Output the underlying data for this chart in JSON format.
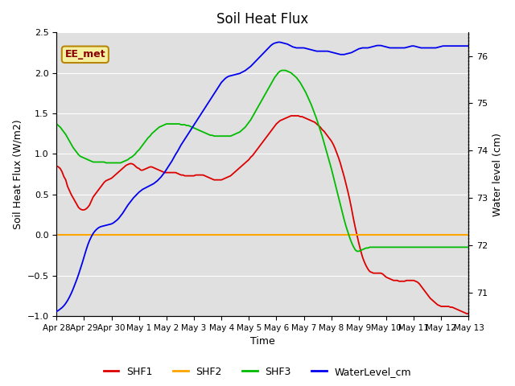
{
  "title": "Soil Heat Flux",
  "ylabel_left": "Soil Heat Flux (W/m2)",
  "ylabel_right": "Water level (cm)",
  "xlabel": "Time",
  "ylim_left": [
    -1.0,
    2.5
  ],
  "ylim_right": [
    70.5,
    76.5
  ],
  "background_color": "#ffffff",
  "plot_bg_color": "#e0e0e0",
  "grid_color": "#ffffff",
  "annotation_text": "EE_met",
  "annotation_bg": "#f5f0a0",
  "annotation_border": "#b8860b",
  "x_tick_labels": [
    "Apr 28",
    "Apr 29",
    "Apr 30",
    "May 1",
    "May 2",
    "May 3",
    "May 4",
    "May 5",
    "May 6",
    "May 7",
    "May 8",
    "May 9",
    "May 10",
    "May 11",
    "May 12",
    "May 13"
  ],
  "shf1_color": "#dd0000",
  "shf2_color": "#ffa500",
  "shf3_color": "#00bb00",
  "wl_color": "#0000ee",
  "shf1_x": [
    0,
    0.1,
    0.2,
    0.3,
    0.4,
    0.5,
    0.6,
    0.7,
    0.8,
    0.9,
    1.0,
    1.1,
    1.2,
    1.3,
    1.4,
    1.5,
    1.6,
    1.7,
    1.8,
    1.9,
    2.0,
    2.1,
    2.2,
    2.3,
    2.4,
    2.5,
    2.6,
    2.7,
    2.8,
    2.9,
    3.0,
    3.1,
    3.2,
    3.3,
    3.4,
    3.5,
    3.6,
    3.7,
    3.8,
    3.9,
    4.0,
    4.1,
    4.2,
    4.3,
    4.4,
    4.5,
    4.6,
    4.7,
    4.8,
    4.9,
    5.0,
    5.1,
    5.2,
    5.3,
    5.4,
    5.5,
    5.6,
    5.7,
    5.8,
    5.9,
    6.0,
    6.1,
    6.2,
    6.3,
    6.4,
    6.5,
    6.6,
    6.7,
    6.8,
    6.9,
    7.0,
    7.1,
    7.2,
    7.3,
    7.4,
    7.5,
    7.6,
    7.7,
    7.8,
    7.9,
    8.0,
    8.1,
    8.2,
    8.3,
    8.4,
    8.5,
    8.6,
    8.7,
    8.8,
    8.9,
    9.0,
    9.1,
    9.2,
    9.3,
    9.4,
    9.5,
    9.6,
    9.7,
    9.8,
    9.9,
    10.0,
    10.1,
    10.2,
    10.3,
    10.4,
    10.5,
    10.6,
    10.7,
    10.8,
    10.9,
    11.0,
    11.1,
    11.2,
    11.3,
    11.4,
    11.5,
    11.6,
    11.7,
    11.8,
    11.9,
    12.0,
    12.1,
    12.2,
    12.3,
    12.4,
    12.5,
    12.6,
    12.7,
    12.8,
    12.9,
    13.0,
    13.1,
    13.2,
    13.3,
    13.4,
    13.5,
    13.6,
    13.7,
    13.8,
    13.9,
    14.0,
    14.1,
    14.2,
    14.3,
    14.4,
    14.5,
    14.6,
    14.7,
    14.8,
    14.9,
    15.0
  ],
  "shf1_y": [
    0.85,
    0.84,
    0.82,
    0.78,
    0.72,
    0.68,
    0.6,
    0.55,
    0.5,
    0.46,
    0.42,
    0.38,
    0.34,
    0.32,
    0.31,
    0.31,
    0.32,
    0.34,
    0.37,
    0.42,
    0.47,
    0.5,
    0.53,
    0.56,
    0.59,
    0.62,
    0.65,
    0.67,
    0.68,
    0.69,
    0.7,
    0.72,
    0.74,
    0.76,
    0.78,
    0.8,
    0.82,
    0.84,
    0.86,
    0.87,
    0.88,
    0.88,
    0.87,
    0.85,
    0.83,
    0.82,
    0.8,
    0.8,
    0.81,
    0.82,
    0.83,
    0.84,
    0.84,
    0.83,
    0.82,
    0.81,
    0.8,
    0.79,
    0.78,
    0.77,
    0.77,
    0.77,
    0.77,
    0.77,
    0.77,
    0.77,
    0.76,
    0.75,
    0.74,
    0.74,
    0.73,
    0.73,
    0.73,
    0.73,
    0.73,
    0.73,
    0.74,
    0.74,
    0.74,
    0.74,
    0.74,
    0.73,
    0.72,
    0.71,
    0.7,
    0.69,
    0.68,
    0.68,
    0.68,
    0.68,
    0.68,
    0.69,
    0.7,
    0.71,
    0.72,
    0.73,
    0.75,
    0.77,
    0.79,
    0.81,
    0.83,
    0.85,
    0.87,
    0.89,
    0.91,
    0.93,
    0.96,
    0.98,
    1.01,
    1.04,
    1.07,
    1.1,
    1.13,
    1.16,
    1.19,
    1.22,
    1.25,
    1.28,
    1.31,
    1.34,
    1.37,
    1.39,
    1.41,
    1.42,
    1.43,
    1.44,
    1.45,
    1.46,
    1.47,
    1.47,
    1.47,
    1.47,
    1.47,
    1.46,
    1.46,
    1.45,
    1.44,
    1.43,
    1.42,
    1.41,
    1.4,
    1.39,
    1.37,
    1.35,
    1.33,
    1.3,
    1.28,
    1.25,
    1.22,
    1.19,
    1.16
  ],
  "shf1_x2": [
    15.0,
    15.1,
    15.2,
    15.3,
    15.4,
    15.5,
    15.6,
    15.7,
    15.8,
    15.9,
    16.0,
    16.1,
    16.2,
    16.3,
    16.4,
    16.5,
    16.6,
    16.7,
    16.8,
    16.9,
    17.0,
    17.1,
    17.2,
    17.3,
    17.4,
    17.5,
    17.6,
    17.7,
    17.8,
    17.9,
    18.0,
    18.1,
    18.2,
    18.3,
    18.4,
    18.5,
    18.6,
    18.7,
    18.8,
    18.9,
    19.0,
    19.1,
    19.2,
    19.3,
    19.4,
    19.5,
    19.6,
    19.7,
    19.8,
    19.9,
    20.0,
    20.1,
    20.2,
    20.3,
    20.4,
    20.5,
    20.6,
    20.7,
    20.8,
    20.9,
    21.0,
    21.1,
    21.2,
    21.3,
    21.4,
    21.5,
    21.6,
    21.7,
    21.8,
    21.9,
    22.0,
    22.1,
    22.2,
    22.3,
    22.4,
    22.5
  ],
  "shf1_y2": [
    1.16,
    1.12,
    1.07,
    1.01,
    0.95,
    0.88,
    0.8,
    0.72,
    0.63,
    0.54,
    0.44,
    0.33,
    0.21,
    0.1,
    0.0,
    -0.1,
    -0.19,
    -0.27,
    -0.33,
    -0.38,
    -0.42,
    -0.45,
    -0.46,
    -0.47,
    -0.47,
    -0.47,
    -0.47,
    -0.47,
    -0.48,
    -0.5,
    -0.52,
    -0.53,
    -0.54,
    -0.55,
    -0.56,
    -0.56,
    -0.56,
    -0.57,
    -0.57,
    -0.57,
    -0.57,
    -0.56,
    -0.56,
    -0.56,
    -0.56,
    -0.56,
    -0.57,
    -0.58,
    -0.6,
    -0.63,
    -0.66,
    -0.69,
    -0.72,
    -0.75,
    -0.78,
    -0.8,
    -0.82,
    -0.84,
    -0.86,
    -0.87,
    -0.88,
    -0.88,
    -0.88,
    -0.88,
    -0.88,
    -0.89,
    -0.89,
    -0.9,
    -0.91,
    -0.92,
    -0.93,
    -0.94,
    -0.95,
    -0.96,
    -0.97,
    -0.97
  ],
  "shf3_x": [
    0,
    0.1,
    0.2,
    0.3,
    0.4,
    0.5,
    0.6,
    0.7,
    0.8,
    0.9,
    1.0,
    1.1,
    1.2,
    1.3,
    1.4,
    1.5,
    1.6,
    1.7,
    1.8,
    1.9,
    2.0,
    2.1,
    2.2,
    2.3,
    2.4,
    2.5,
    2.6,
    2.7,
    2.8,
    2.9,
    3.0,
    3.1,
    3.2,
    3.3,
    3.4,
    3.5,
    3.6,
    3.7,
    3.8,
    3.9,
    4.0,
    4.1,
    4.2,
    4.3,
    4.4,
    4.5,
    4.6,
    4.7,
    4.8,
    4.9,
    5.0,
    5.1,
    5.2,
    5.3,
    5.4,
    5.5,
    5.6,
    5.7,
    5.8,
    5.9,
    6.0,
    6.1,
    6.2,
    6.3,
    6.4,
    6.5,
    6.6,
    6.7,
    6.8,
    6.9,
    7.0,
    7.1,
    7.2,
    7.3,
    7.4,
    7.5,
    7.6,
    7.7,
    7.8,
    7.9,
    8.0,
    8.1,
    8.2,
    8.3,
    8.4,
    8.5,
    8.6,
    8.7,
    8.8,
    8.9,
    9.0,
    9.1,
    9.2,
    9.3,
    9.4,
    9.5,
    9.6,
    9.7,
    9.8,
    9.9,
    10.0,
    10.1,
    10.2,
    10.3,
    10.4,
    10.5,
    10.6,
    10.7,
    10.8,
    10.9,
    11.0,
    11.1,
    11.2,
    11.3,
    11.4,
    11.5,
    11.6,
    11.7,
    11.8,
    11.9,
    12.0,
    12.1,
    12.2,
    12.3,
    12.4,
    12.5,
    12.6,
    12.7,
    12.8,
    12.9,
    13.0,
    13.1,
    13.2,
    13.3,
    13.4,
    13.5,
    13.6,
    13.7,
    13.8,
    13.9,
    14.0,
    14.1,
    14.2,
    14.3,
    14.4,
    14.5,
    14.6,
    14.7,
    14.8,
    14.9,
    15.0,
    15.1,
    15.2,
    15.3,
    15.4,
    15.5,
    15.6,
    15.7,
    15.8,
    15.9,
    16.0,
    16.1,
    16.2,
    16.3,
    16.4,
    16.5,
    16.6,
    16.7,
    16.8,
    16.9,
    17.0,
    17.1,
    17.2,
    17.3,
    17.4,
    17.5,
    17.6,
    17.7,
    17.8,
    17.9,
    18.0,
    18.1,
    18.2,
    18.3,
    18.4,
    18.5,
    18.6,
    18.7,
    18.8,
    18.9,
    19.0,
    19.1,
    19.2,
    19.3,
    19.4,
    19.5,
    19.6,
    19.7,
    19.8,
    19.9,
    20.0,
    20.1,
    20.2,
    20.3,
    20.4,
    20.5,
    20.6,
    20.7,
    20.8,
    20.9,
    21.0,
    21.1,
    21.2,
    21.3,
    21.4,
    21.5,
    21.6,
    21.7,
    21.8,
    21.9,
    22.0,
    22.1,
    22.2,
    22.3,
    22.4,
    22.5
  ],
  "shf3_y": [
    1.37,
    1.35,
    1.33,
    1.3,
    1.27,
    1.24,
    1.2,
    1.16,
    1.12,
    1.08,
    1.05,
    1.02,
    0.99,
    0.97,
    0.96,
    0.95,
    0.94,
    0.93,
    0.92,
    0.91,
    0.9,
    0.9,
    0.9,
    0.9,
    0.9,
    0.9,
    0.9,
    0.89,
    0.89,
    0.89,
    0.89,
    0.89,
    0.89,
    0.89,
    0.89,
    0.89,
    0.9,
    0.91,
    0.92,
    0.93,
    0.95,
    0.96,
    0.98,
    1.0,
    1.03,
    1.05,
    1.08,
    1.11,
    1.14,
    1.17,
    1.2,
    1.22,
    1.25,
    1.27,
    1.29,
    1.31,
    1.33,
    1.34,
    1.35,
    1.36,
    1.37,
    1.37,
    1.37,
    1.37,
    1.37,
    1.37,
    1.37,
    1.37,
    1.36,
    1.36,
    1.36,
    1.35,
    1.35,
    1.34,
    1.33,
    1.32,
    1.31,
    1.3,
    1.29,
    1.28,
    1.27,
    1.26,
    1.25,
    1.24,
    1.23,
    1.23,
    1.22,
    1.22,
    1.22,
    1.22,
    1.22,
    1.22,
    1.22,
    1.22,
    1.22,
    1.22,
    1.23,
    1.24,
    1.25,
    1.26,
    1.27,
    1.29,
    1.31,
    1.33,
    1.36,
    1.39,
    1.42,
    1.46,
    1.5,
    1.54,
    1.58,
    1.62,
    1.66,
    1.7,
    1.74,
    1.78,
    1.82,
    1.86,
    1.9,
    1.94,
    1.97,
    2.0,
    2.02,
    2.03,
    2.03,
    2.03,
    2.02,
    2.01,
    2.0,
    1.98,
    1.96,
    1.94,
    1.91,
    1.88,
    1.84,
    1.8,
    1.76,
    1.71,
    1.66,
    1.61,
    1.55,
    1.49,
    1.43,
    1.36,
    1.29,
    1.22,
    1.14,
    1.06,
    0.98,
    0.9,
    0.82,
    0.73,
    0.64,
    0.55,
    0.46,
    0.37,
    0.28,
    0.19,
    0.11,
    0.04,
    -0.03,
    -0.09,
    -0.14,
    -0.18,
    -0.2,
    -0.2,
    -0.19,
    -0.18,
    -0.17,
    -0.16,
    -0.16,
    -0.15,
    -0.15,
    -0.15,
    -0.15,
    -0.15,
    -0.15,
    -0.15,
    -0.15,
    -0.15,
    -0.15,
    -0.15,
    -0.15,
    -0.15,
    -0.15,
    -0.15,
    -0.15,
    -0.15,
    -0.15,
    -0.15,
    -0.15,
    -0.15,
    -0.15,
    -0.15,
    -0.15,
    -0.15,
    -0.15,
    -0.15,
    -0.15,
    -0.15,
    -0.15,
    -0.15,
    -0.15,
    -0.15,
    -0.15,
    -0.15,
    -0.15,
    -0.15,
    -0.15,
    -0.15,
    -0.15,
    -0.15,
    -0.15,
    -0.15,
    -0.15,
    -0.15,
    -0.15,
    -0.15,
    -0.15,
    -0.15,
    -0.15,
    -0.15,
    -0.15,
    -0.15,
    -0.15,
    -0.15
  ],
  "wl_x": [
    0,
    0.1,
    0.2,
    0.3,
    0.4,
    0.5,
    0.6,
    0.7,
    0.8,
    0.9,
    1.0,
    1.1,
    1.2,
    1.3,
    1.4,
    1.5,
    1.6,
    1.7,
    1.8,
    1.9,
    2.0,
    2.1,
    2.2,
    2.3,
    2.4,
    2.5,
    2.6,
    2.7,
    2.8,
    2.9,
    3.0,
    3.1,
    3.2,
    3.3,
    3.4,
    3.5,
    3.6,
    3.7,
    3.8,
    3.9,
    4.0,
    4.1,
    4.2,
    4.3,
    4.4,
    4.5,
    4.6,
    4.7,
    4.8,
    4.9,
    5.0,
    5.1,
    5.2,
    5.3,
    5.4,
    5.5,
    5.6,
    5.7,
    5.8,
    5.9,
    6.0,
    6.1,
    6.2,
    6.3,
    6.4,
    6.5,
    6.6,
    6.7,
    6.8,
    6.9,
    7.0,
    7.1,
    7.2,
    7.3,
    7.4,
    7.5,
    7.6,
    7.7,
    7.8,
    7.9,
    8.0,
    8.1,
    8.2,
    8.3,
    8.4,
    8.5,
    8.6,
    8.7,
    8.8,
    8.9,
    9.0,
    9.1,
    9.2,
    9.3,
    9.4,
    9.5,
    9.6,
    9.7,
    9.8,
    9.9,
    10.0,
    10.1,
    10.2,
    10.3,
    10.4,
    10.5,
    10.6,
    10.7,
    10.8,
    10.9,
    11.0,
    11.1,
    11.2,
    11.3,
    11.4,
    11.5,
    11.6,
    11.7,
    11.8,
    11.9,
    12.0,
    12.1,
    12.2,
    12.3,
    12.4,
    12.5,
    12.6,
    12.7,
    12.8,
    12.9,
    13.0,
    13.1,
    13.2,
    13.3,
    13.4,
    13.5,
    13.6,
    13.7,
    13.8,
    13.9,
    14.0,
    14.1,
    14.2,
    14.3,
    14.4,
    14.5,
    14.6,
    14.7,
    14.8,
    14.9,
    15.0,
    15.1,
    15.2,
    15.3,
    15.4,
    15.5,
    15.6,
    15.7,
    15.8,
    15.9,
    16.0,
    16.1,
    16.2,
    16.3,
    16.4,
    16.5,
    16.6,
    16.7,
    16.8,
    16.9,
    17.0,
    17.1,
    17.2,
    17.3,
    17.4,
    17.5,
    17.6,
    17.7,
    17.8,
    17.9,
    18.0,
    18.1,
    18.2,
    18.3,
    18.4,
    18.5,
    18.6,
    18.7,
    18.8,
    18.9,
    19.0,
    19.1,
    19.2,
    19.3,
    19.4,
    19.5,
    19.6,
    19.7,
    19.8,
    19.9,
    20.0,
    20.1,
    20.2,
    20.3,
    20.4,
    20.5,
    20.6,
    20.7,
    20.8,
    20.9,
    21.0,
    21.1,
    21.2,
    21.3,
    21.4,
    21.5,
    21.6,
    21.7,
    21.8,
    21.9,
    22.0,
    22.1,
    22.2,
    22.3,
    22.4,
    22.5
  ],
  "wl_y": [
    70.6,
    70.62,
    70.65,
    70.68,
    70.72,
    70.77,
    70.83,
    70.9,
    70.98,
    71.07,
    71.17,
    71.27,
    71.38,
    71.5,
    71.62,
    71.75,
    71.88,
    72.0,
    72.1,
    72.18,
    72.25,
    72.3,
    72.34,
    72.37,
    72.39,
    72.4,
    72.41,
    72.42,
    72.43,
    72.44,
    72.45,
    72.47,
    72.5,
    72.53,
    72.57,
    72.62,
    72.67,
    72.73,
    72.79,
    72.85,
    72.9,
    72.95,
    73.0,
    73.04,
    73.08,
    73.12,
    73.15,
    73.18,
    73.2,
    73.22,
    73.24,
    73.26,
    73.28,
    73.3,
    73.33,
    73.36,
    73.4,
    73.44,
    73.49,
    73.54,
    73.6,
    73.66,
    73.72,
    73.78,
    73.85,
    73.92,
    73.98,
    74.05,
    74.12,
    74.18,
    74.24,
    74.3,
    74.36,
    74.42,
    74.48,
    74.54,
    74.6,
    74.66,
    74.72,
    74.78,
    74.84,
    74.9,
    74.96,
    75.02,
    75.08,
    75.14,
    75.2,
    75.26,
    75.32,
    75.38,
    75.44,
    75.48,
    75.52,
    75.55,
    75.57,
    75.58,
    75.59,
    75.6,
    75.61,
    75.62,
    75.63,
    75.65,
    75.67,
    75.69,
    75.72,
    75.75,
    75.78,
    75.82,
    75.86,
    75.9,
    75.94,
    75.98,
    76.02,
    76.06,
    76.1,
    76.14,
    76.18,
    76.22,
    76.25,
    76.27,
    76.28,
    76.29,
    76.29,
    76.28,
    76.27,
    76.26,
    76.25,
    76.23,
    76.21,
    76.19,
    76.18,
    76.17,
    76.17,
    76.17,
    76.17,
    76.17,
    76.16,
    76.15,
    76.14,
    76.13,
    76.12,
    76.11,
    76.1,
    76.1,
    76.1,
    76.1,
    76.1,
    76.1,
    76.1,
    76.09,
    76.08,
    76.07,
    76.06,
    76.05,
    76.04,
    76.03,
    76.03,
    76.03,
    76.04,
    76.05,
    76.06,
    76.07,
    76.09,
    76.11,
    76.13,
    76.15,
    76.16,
    76.17,
    76.17,
    76.17,
    76.17,
    76.18,
    76.19,
    76.2,
    76.21,
    76.22,
    76.22,
    76.22,
    76.21,
    76.2,
    76.19,
    76.18,
    76.17,
    76.17,
    76.17,
    76.17,
    76.17,
    76.17,
    76.17,
    76.17,
    76.17,
    76.18,
    76.19,
    76.2,
    76.21,
    76.21,
    76.2,
    76.19,
    76.18,
    76.17,
    76.17,
    76.17,
    76.17,
    76.17,
    76.17,
    76.17,
    76.17,
    76.17,
    76.18,
    76.19,
    76.2,
    76.21,
    76.21,
    76.21,
    76.21,
    76.21,
    76.21,
    76.21,
    76.21,
    76.21,
    76.21,
    76.21,
    76.21,
    76.21,
    76.21,
    76.21
  ]
}
